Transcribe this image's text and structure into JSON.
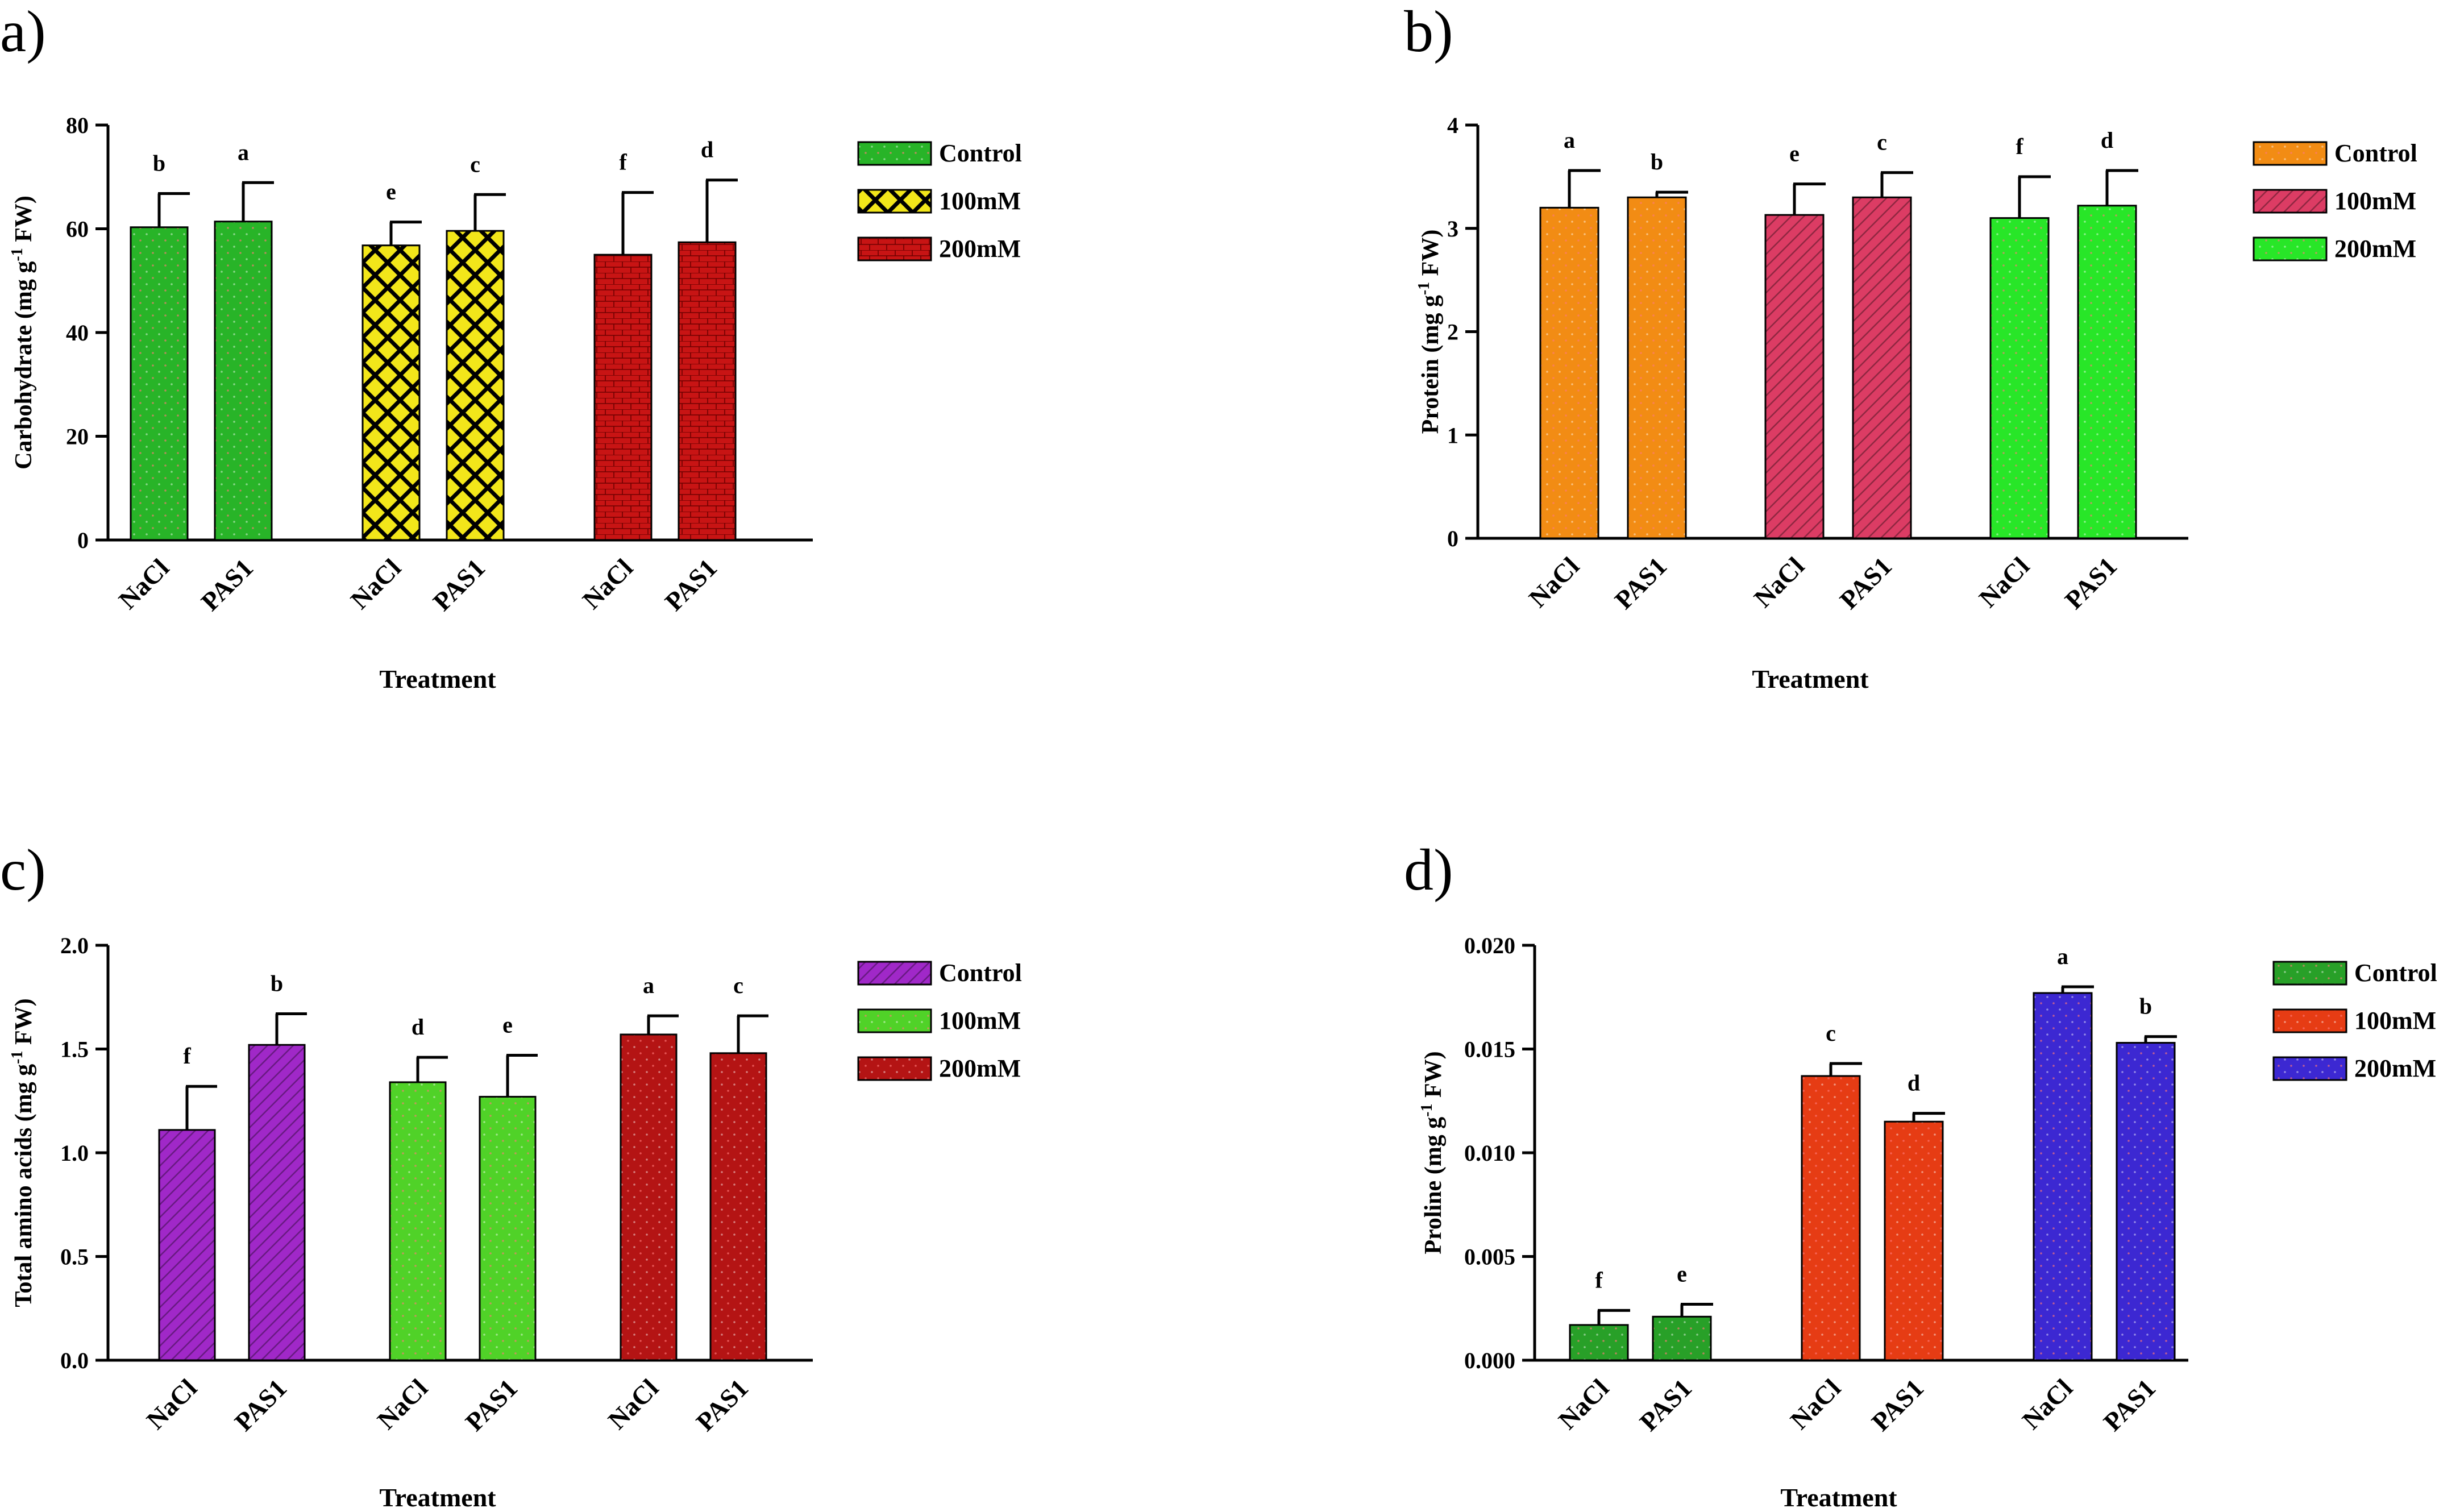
{
  "chart_data": [
    {
      "panel_label": "a)",
      "type": "bar",
      "ylabel": "Carbohydrate (mg g",
      "ylabel_unit": " FW)",
      "ylabel_sup": "-1",
      "xlabel": "Treatment",
      "ylim": [
        0,
        80
      ],
      "yticks": [
        "0",
        "20",
        "40",
        "60",
        "80"
      ],
      "legend": [
        "Control",
        "100mM",
        "200mM"
      ],
      "colors": [
        "#28b428",
        "#f2e61a",
        "#c81414"
      ],
      "patterns": [
        "dots",
        "cross",
        "brick"
      ],
      "groups": [
        {
          "name": "Control",
          "bars": [
            {
              "category": "NaCl",
              "value": 60.3,
              "error": 6.5,
              "letter": "b"
            },
            {
              "category": "PAS1",
              "value": 61.4,
              "error": 7.5,
              "letter": "a"
            }
          ]
        },
        {
          "name": "100mM",
          "bars": [
            {
              "category": "NaCl",
              "value": 56.8,
              "error": 4.5,
              "letter": "e"
            },
            {
              "category": "PAS1",
              "value": 59.6,
              "error": 7.0,
              "letter": "c"
            }
          ]
        },
        {
          "name": "200mM",
          "bars": [
            {
              "category": "NaCl",
              "value": 55.0,
              "error": 12.0,
              "letter": "f"
            },
            {
              "category": "PAS1",
              "value": 57.4,
              "error": 12.0,
              "letter": "d"
            }
          ]
        }
      ]
    },
    {
      "panel_label": "b)",
      "type": "bar",
      "ylabel": "Protein (mg g",
      "ylabel_unit": " FW)",
      "ylabel_sup": "-1",
      "xlabel": "Treatment",
      "ylim": [
        0,
        4
      ],
      "yticks": [
        "0",
        "1",
        "2",
        "3",
        "4"
      ],
      "legend": [
        "Control",
        "100mM",
        "200mM"
      ],
      "colors": [
        "#f28c14",
        "#dc3c64",
        "#28e628"
      ],
      "patterns": [
        "dots",
        "diag",
        "dots"
      ],
      "groups": [
        {
          "name": "Control",
          "bars": [
            {
              "category": "NaCl",
              "value": 3.2,
              "error": 0.36,
              "letter": "a"
            },
            {
              "category": "PAS1",
              "value": 3.3,
              "error": 0.05,
              "letter": "b"
            }
          ]
        },
        {
          "name": "100mM",
          "bars": [
            {
              "category": "NaCl",
              "value": 3.13,
              "error": 0.3,
              "letter": "e"
            },
            {
              "category": "PAS1",
              "value": 3.3,
              "error": 0.24,
              "letter": "c"
            }
          ]
        },
        {
          "name": "200mM",
          "bars": [
            {
              "category": "NaCl",
              "value": 3.1,
              "error": 0.4,
              "letter": "f"
            },
            {
              "category": "PAS1",
              "value": 3.22,
              "error": 0.34,
              "letter": "d"
            }
          ]
        }
      ]
    },
    {
      "panel_label": "c)",
      "type": "bar",
      "ylabel": "Total amino acids (mg g",
      "ylabel_unit": " FW)",
      "ylabel_sup": "-1",
      "xlabel": "Treatment",
      "ylim": [
        0,
        2.0
      ],
      "yticks": [
        "0.0",
        "0.5",
        "1.0",
        "1.5",
        "2.0"
      ],
      "legend": [
        "Control",
        "100mM",
        "200mM"
      ],
      "colors": [
        "#a028c8",
        "#50d228",
        "#b41414"
      ],
      "patterns": [
        "diag",
        "dots",
        "dots"
      ],
      "groups": [
        {
          "name": "Control",
          "bars": [
            {
              "category": "NaCl",
              "value": 1.11,
              "error": 0.21,
              "letter": "f"
            },
            {
              "category": "PAS1",
              "value": 1.52,
              "error": 0.15,
              "letter": "b"
            }
          ]
        },
        {
          "name": "100mM",
          "bars": [
            {
              "category": "NaCl",
              "value": 1.34,
              "error": 0.12,
              "letter": "d"
            },
            {
              "category": "PAS1",
              "value": 1.27,
              "error": 0.2,
              "letter": "e"
            }
          ]
        },
        {
          "name": "200mM",
          "bars": [
            {
              "category": "NaCl",
              "value": 1.57,
              "error": 0.09,
              "letter": "a"
            },
            {
              "category": "PAS1",
              "value": 1.48,
              "error": 0.18,
              "letter": "c"
            }
          ]
        }
      ]
    },
    {
      "panel_label": "d)",
      "type": "bar",
      "ylabel": "Proline (mg g",
      "ylabel_unit": " FW)",
      "ylabel_sup": "-1",
      "xlabel": "Treatment",
      "ylim": [
        0,
        0.02
      ],
      "yticks": [
        "0.000",
        "0.005",
        "0.010",
        "0.015",
        "0.020"
      ],
      "legend": [
        "Control",
        "100mM",
        "200mM"
      ],
      "colors": [
        "#28a028",
        "#e63c14",
        "#3c28d2"
      ],
      "patterns": [
        "dots",
        "dots",
        "dots"
      ],
      "groups": [
        {
          "name": "Control",
          "bars": [
            {
              "category": "NaCl",
              "value": 0.0017,
              "error": 0.0007,
              "letter": "f"
            },
            {
              "category": "PAS1",
              "value": 0.0021,
              "error": 0.0006,
              "letter": "e"
            }
          ]
        },
        {
          "name": "100mM",
          "bars": [
            {
              "category": "NaCl",
              "value": 0.0137,
              "error": 0.0006,
              "letter": "c"
            },
            {
              "category": "PAS1",
              "value": 0.0115,
              "error": 0.0004,
              "letter": "d"
            }
          ]
        },
        {
          "name": "200mM",
          "bars": [
            {
              "category": "NaCl",
              "value": 0.0177,
              "error": 0.0003,
              "letter": "a"
            },
            {
              "category": "PAS1",
              "value": 0.0153,
              "error": 0.0003,
              "letter": "b"
            }
          ]
        }
      ]
    }
  ]
}
